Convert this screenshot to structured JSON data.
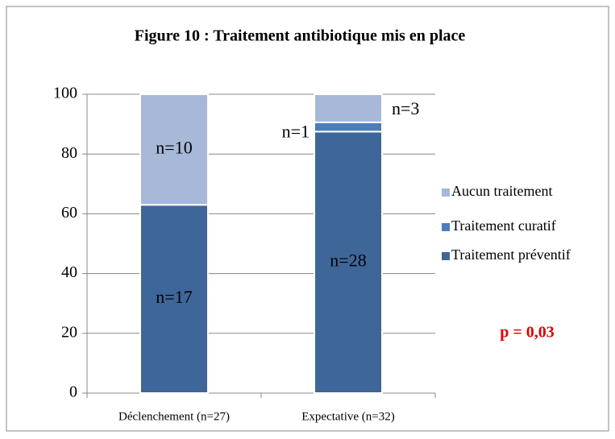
{
  "chart_data": {
    "type": "stacked_bar",
    "title": "Figure 10 : Traitement antibiotique mis en place",
    "categories": [
      "Déclenchement (n=27)",
      "Expectative (n=32)"
    ],
    "series": [
      {
        "name": "Traitement préventif",
        "color": "#3e6699",
        "values": [
          63,
          87.5
        ],
        "labels": [
          "n=17",
          "n=28"
        ]
      },
      {
        "name": "Traitement curatif",
        "color": "#4a7ebb",
        "values": [
          0,
          3.1
        ],
        "labels": [
          null,
          "n=1"
        ]
      },
      {
        "name": "Aucun traitement",
        "color": "#a7b8d8",
        "values": [
          37,
          9.4
        ],
        "labels": [
          "n=10",
          "n=3"
        ]
      }
    ],
    "ylim": [
      0,
      100
    ],
    "yticks": [
      0,
      20,
      40,
      60,
      80,
      100
    ],
    "grid": true,
    "legend": "right",
    "annotations": [
      {
        "text": "p = 0,03",
        "color": "#e00000"
      }
    ]
  }
}
